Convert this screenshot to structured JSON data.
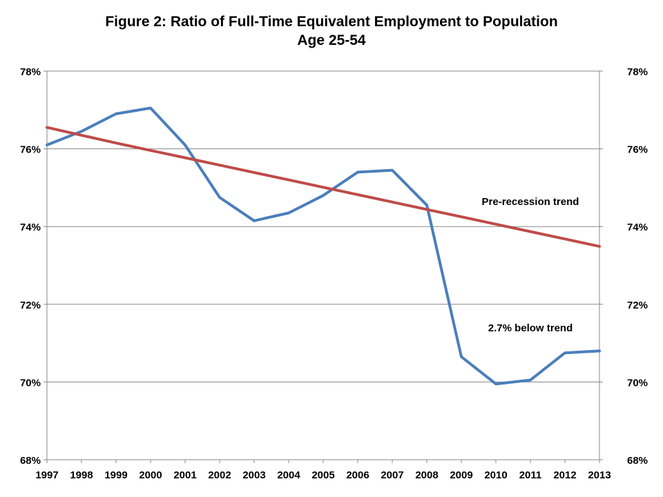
{
  "chart_data": {
    "type": "line",
    "title": "Figure 2: Ratio of Full-Time Equivalent Employment to Population",
    "subtitle": "Age 25-54",
    "x": [
      "1997",
      "1998",
      "1999",
      "2000",
      "2001",
      "2002",
      "2003",
      "2004",
      "2005",
      "2006",
      "2007",
      "2008",
      "2009",
      "2010",
      "2011",
      "2012",
      "2013"
    ],
    "ylim": [
      68,
      78
    ],
    "y_ticks": [
      68,
      70,
      72,
      74,
      76,
      78
    ],
    "y_tick_labels": [
      "68%",
      "70%",
      "72%",
      "74%",
      "76%",
      "78%"
    ],
    "secondary_y_axis": true,
    "grid": "horizontal",
    "series": [
      {
        "values": [
          76.1,
          76.45,
          76.9,
          77.05,
          76.1,
          74.75,
          74.15,
          74.35,
          74.8,
          75.4,
          75.45,
          74.55,
          70.65,
          69.95,
          70.05,
          70.75,
          70.8
        ],
        "color": "#4a7ebb"
      },
      {
        "name": "Pre-recession trend",
        "values": [
          76.55,
          76.35,
          76.15,
          75.96,
          75.77,
          75.58,
          75.39,
          75.2,
          75.01,
          74.82,
          74.63,
          74.44,
          74.25,
          74.06,
          73.87,
          73.68,
          73.49
        ],
        "color": "#be4b48"
      }
    ],
    "annotations": [
      {
        "text": "Pre-recession trend",
        "x": "2011",
        "y": 74.55
      },
      {
        "text": "2.7% below trend",
        "x": "2011",
        "y": 71.3
      }
    ]
  }
}
